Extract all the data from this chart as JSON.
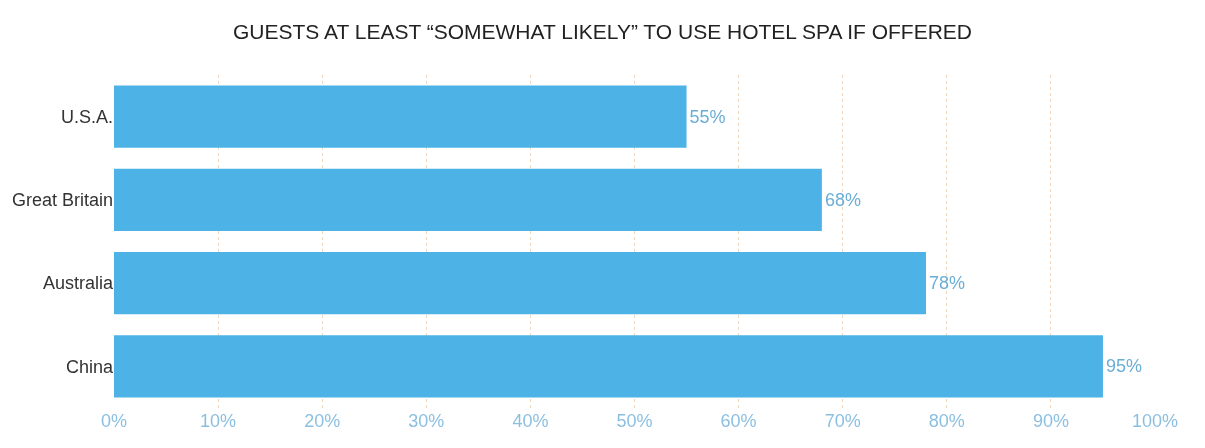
{
  "chart_data": {
    "type": "bar",
    "orientation": "horizontal",
    "title": "GUESTS AT LEAST “SOMEWHAT LIKELY” TO USE HOTEL SPA IF OFFERED",
    "categories": [
      "U.S.A.",
      "Great Britain",
      "Australia",
      "China"
    ],
    "values": [
      55,
      68,
      78,
      95
    ],
    "value_labels": [
      "55%",
      "68%",
      "78%",
      "95%"
    ],
    "color": "#4db3e6",
    "xlim": [
      0,
      100
    ],
    "xticks": [
      {
        "value": 0,
        "label": "0%"
      },
      {
        "value": 10,
        "label": "10%"
      },
      {
        "value": 20,
        "label": "20%"
      },
      {
        "value": 30,
        "label": "30%"
      },
      {
        "value": 40,
        "label": "40%"
      },
      {
        "value": 50,
        "label": "50%"
      },
      {
        "value": 60,
        "label": "60%"
      },
      {
        "value": 70,
        "label": "70%"
      },
      {
        "value": 80,
        "label": "80%"
      },
      {
        "value": 90,
        "label": "90%"
      },
      {
        "value": 100,
        "label": "100%"
      }
    ],
    "grid": "x",
    "legend": false
  }
}
